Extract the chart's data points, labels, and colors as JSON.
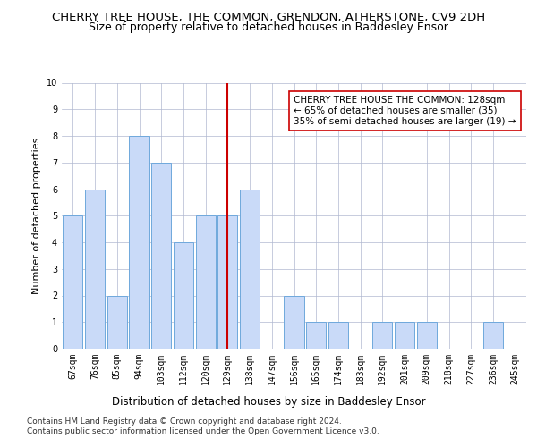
{
  "title1": "CHERRY TREE HOUSE, THE COMMON, GRENDON, ATHERSTONE, CV9 2DH",
  "title2": "Size of property relative to detached houses in Baddesley Ensor",
  "xlabel": "Distribution of detached houses by size in Baddesley Ensor",
  "ylabel": "Number of detached properties",
  "categories": [
    "67sqm",
    "76sqm",
    "85sqm",
    "94sqm",
    "103sqm",
    "112sqm",
    "120sqm",
    "129sqm",
    "138sqm",
    "147sqm",
    "156sqm",
    "165sqm",
    "174sqm",
    "183sqm",
    "192sqm",
    "201sqm",
    "209sqm",
    "218sqm",
    "227sqm",
    "236sqm",
    "245sqm"
  ],
  "values": [
    5,
    6,
    2,
    8,
    7,
    4,
    5,
    5,
    6,
    0,
    2,
    1,
    1,
    0,
    1,
    1,
    1,
    0,
    0,
    1,
    0
  ],
  "bar_color": "#c9daf8",
  "bar_edge_color": "#6fa8dc",
  "highlight_index": 7,
  "highlight_line_color": "#cc0000",
  "annotation_text": "CHERRY TREE HOUSE THE COMMON: 128sqm\n← 65% of detached houses are smaller (35)\n35% of semi-detached houses are larger (19) →",
  "annotation_box_color": "#ffffff",
  "annotation_box_edge": "#cc0000",
  "ylim": [
    0,
    10
  ],
  "yticks": [
    0,
    1,
    2,
    3,
    4,
    5,
    6,
    7,
    8,
    9,
    10
  ],
  "footer": "Contains HM Land Registry data © Crown copyright and database right 2024.\nContains public sector information licensed under the Open Government Licence v3.0.",
  "bg_color": "#ffffff",
  "grid_color": "#b0b8d0",
  "title1_fontsize": 9.5,
  "title2_fontsize": 9,
  "xlabel_fontsize": 8.5,
  "ylabel_fontsize": 8,
  "tick_fontsize": 7,
  "annotation_fontsize": 7.5,
  "footer_fontsize": 6.5
}
